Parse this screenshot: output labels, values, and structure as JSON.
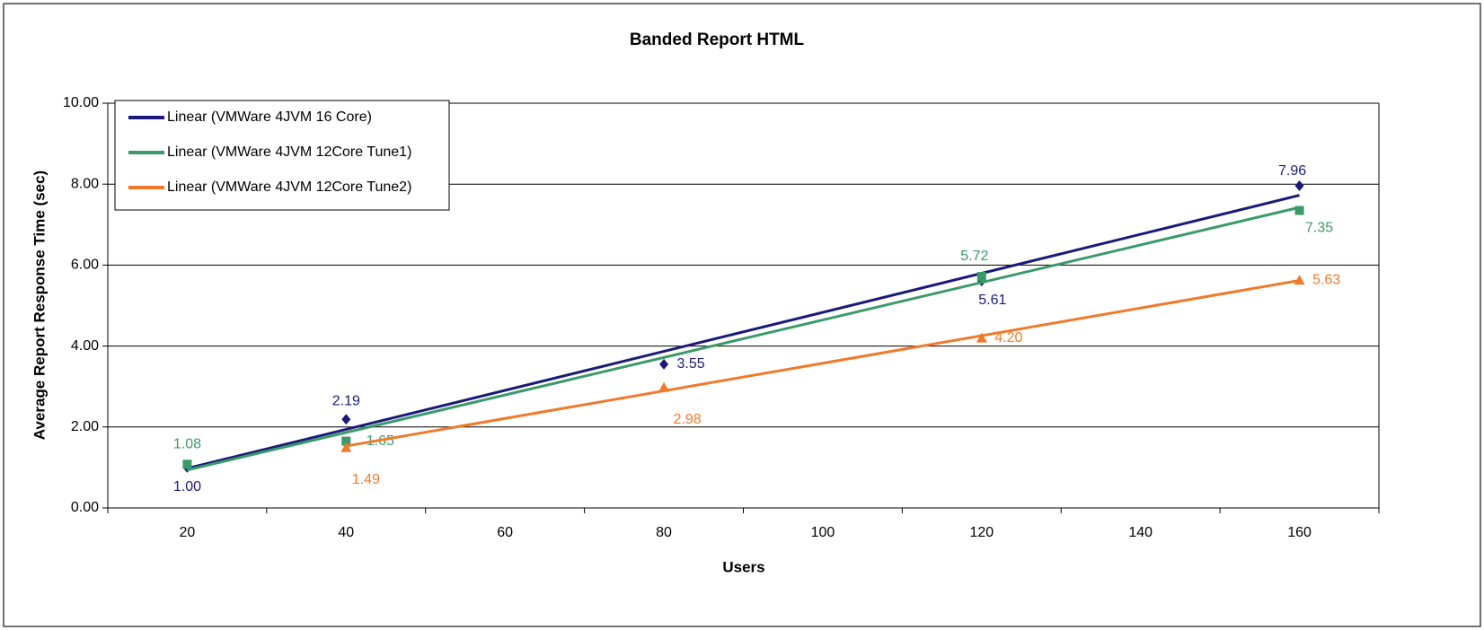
{
  "chart_data": {
    "type": "line",
    "title": "Banded Report HTML",
    "x_label": "Users",
    "y_label": "Average Report Response Time (sec)",
    "categories": [
      "20",
      "40",
      "60",
      "80",
      "100",
      "120",
      "140",
      "160"
    ],
    "trendline": "linear",
    "ylim": [
      0,
      10
    ],
    "yticks": [
      {
        "value": 0,
        "label": "0.00"
      },
      {
        "value": 2,
        "label": "2.00"
      },
      {
        "value": 4,
        "label": "4.00"
      },
      {
        "value": 6,
        "label": "6.00"
      },
      {
        "value": 8,
        "label": "8.00"
      },
      {
        "value": 10,
        "label": "10.00"
      }
    ],
    "grid": true,
    "legend": "upper left",
    "series": [
      {
        "name": "Linear (VMWare 4JVM 16 Core)",
        "color": "#1a1a7a",
        "marker": "diamond",
        "values": [
          1.0,
          2.19,
          null,
          3.55,
          null,
          5.61,
          null,
          7.96
        ],
        "value_labels": [
          "1.00",
          "2.19",
          null,
          "3.55",
          null,
          "5.61",
          null,
          "7.96"
        ]
      },
      {
        "name": "Linear (VMWare 4JVM 12Core Tune1)",
        "color": "#3a9a6a",
        "marker": "square",
        "values": [
          1.08,
          1.65,
          null,
          null,
          null,
          5.72,
          null,
          7.35
        ],
        "value_labels": [
          "1.08",
          "1.65",
          null,
          null,
          null,
          "5.72",
          null,
          "7.35"
        ]
      },
      {
        "name": "Linear (VMWare 4JVM 12Core Tune2)",
        "color": "#f07a2a",
        "marker": "triangle",
        "values": [
          null,
          1.49,
          null,
          2.98,
          null,
          4.2,
          null,
          5.63
        ],
        "value_labels": [
          null,
          "1.49",
          null,
          "2.98",
          null,
          "4.20",
          null,
          "5.63"
        ]
      }
    ]
  }
}
